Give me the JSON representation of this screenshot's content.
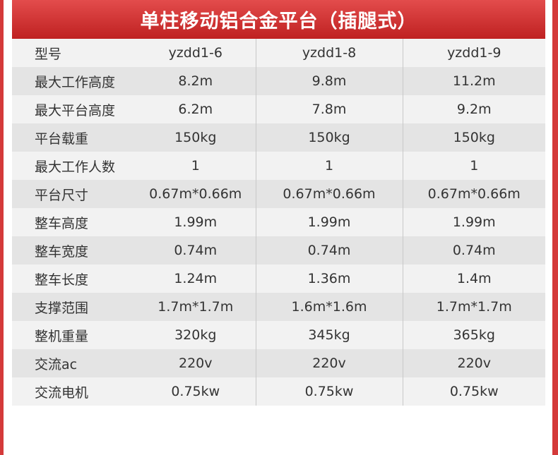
{
  "title": "单柱移动铝合金平台（插腿式）",
  "colors": {
    "accent": "#c92a2a",
    "row_light": "#f2f2f2",
    "row_dark": "#e4e4e4"
  },
  "rows": [
    {
      "label": "型号",
      "values": [
        "yzdd1-6",
        "yzdd1-8",
        "yzdd1-9"
      ]
    },
    {
      "label": "最大工作高度",
      "values": [
        "8.2m",
        "9.8m",
        "11.2m"
      ]
    },
    {
      "label": "最大平台高度",
      "values": [
        "6.2m",
        "7.8m",
        "9.2m"
      ]
    },
    {
      "label": "平台载重",
      "values": [
        "150kg",
        "150kg",
        "150kg"
      ]
    },
    {
      "label": "最大工作人数",
      "values": [
        "1",
        "1",
        "1"
      ]
    },
    {
      "label": "平台尺寸",
      "values": [
        "0.67m*0.66m",
        "0.67m*0.66m",
        "0.67m*0.66m"
      ]
    },
    {
      "label": "整车高度",
      "values": [
        "1.99m",
        "1.99m",
        "1.99m"
      ]
    },
    {
      "label": "整车宽度",
      "values": [
        "0.74m",
        "0.74m",
        "0.74m"
      ]
    },
    {
      "label": "整车长度",
      "values": [
        "1.24m",
        "1.36m",
        "1.4m"
      ]
    },
    {
      "label": "支撑范围",
      "values": [
        "1.7m*1.7m",
        "1.6m*1.6m",
        "1.7m*1.7m"
      ]
    },
    {
      "label": "整机重量",
      "values": [
        "320kg",
        "345kg",
        "365kg"
      ]
    },
    {
      "label": "交流ac",
      "values": [
        "220v",
        "220v",
        "220v"
      ]
    },
    {
      "label": "交流电机",
      "values": [
        "0.75kw",
        "0.75kw",
        "0.75kw"
      ]
    }
  ]
}
